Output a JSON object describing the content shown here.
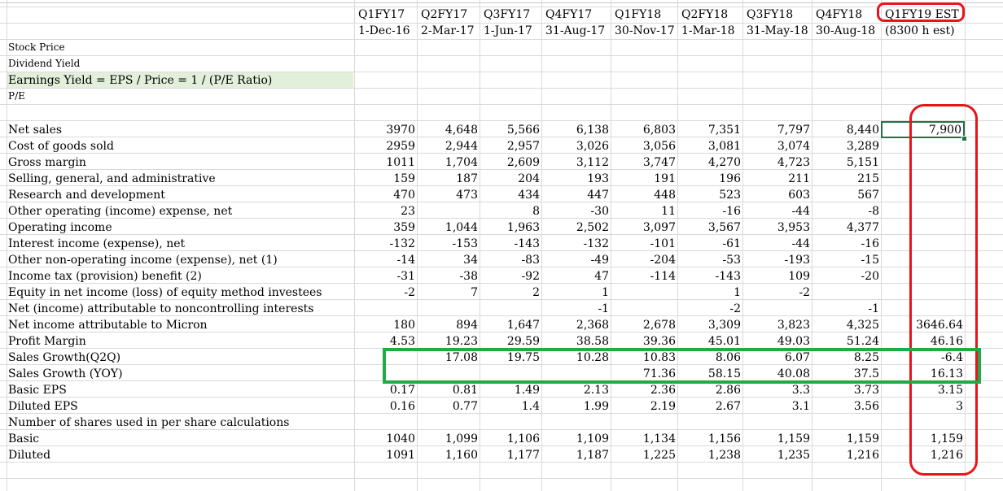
{
  "header": {
    "quarters": [
      "Q1FY17",
      "Q2FY17",
      "Q3FY17",
      "Q4FY17",
      "Q1FY18",
      "Q2FY18",
      "Q3FY18",
      "Q4FY18",
      "Q1FY19 EST"
    ],
    "dates": [
      "1-Dec-16",
      "2-Mar-17",
      "1-Jun-17",
      "31-Aug-17",
      "30-Nov-17",
      "1-Mar-18",
      "31-May-18",
      "30-Aug-18",
      "(8300 h est)"
    ]
  },
  "top_labels": [
    "Stock Price",
    "Dividend Yield",
    "Earnings Yield = EPS / Price = 1 / (P/E Ratio)",
    "P/E"
  ],
  "selected_value": "7,900",
  "rows": [
    {
      "label": "Net sales",
      "values": [
        "3970",
        "4,648",
        "5,566",
        "6,138",
        "6,803",
        "7,351",
        "7,797",
        "8,440",
        ""
      ]
    },
    {
      "label": "Cost of goods sold",
      "values": [
        "2959",
        "2,944",
        "2,957",
        "3,026",
        "3,056",
        "3,081",
        "3,074",
        "3,289",
        ""
      ]
    },
    {
      "label": "Gross margin",
      "values": [
        "1011",
        "1,704",
        "2,609",
        "3,112",
        "3,747",
        "4,270",
        "4,723",
        "5,151",
        ""
      ]
    },
    {
      "label": "Selling, general, and administrative",
      "values": [
        "159",
        "187",
        "204",
        "193",
        "191",
        "196",
        "211",
        "215",
        ""
      ]
    },
    {
      "label": "Research and development",
      "values": [
        "470",
        "473",
        "434",
        "447",
        "448",
        "523",
        "603",
        "567",
        ""
      ]
    },
    {
      "label": "Other operating (income) expense, net",
      "values": [
        "23",
        "",
        "8",
        "-30",
        "11",
        "-16",
        "-44",
        "-8",
        ""
      ]
    },
    {
      "label": "Operating income",
      "values": [
        "359",
        "1,044",
        "1,963",
        "2,502",
        "3,097",
        "3,567",
        "3,953",
        "4,377",
        ""
      ]
    },
    {
      "label": "Interest income (expense), net",
      "values": [
        "-132",
        "-153",
        "-143",
        "-132",
        "-101",
        "-61",
        "-44",
        "-16",
        ""
      ]
    },
    {
      "label": "Other non-operating income (expense), net (1)",
      "values": [
        "-14",
        "34",
        "-83",
        "-49",
        "-204",
        "-53",
        "-193",
        "-15",
        ""
      ]
    },
    {
      "label": "Income tax (provision) benefit (2)",
      "values": [
        "-31",
        "-38",
        "-92",
        "47",
        "-114",
        "-143",
        "109",
        "-20",
        ""
      ]
    },
    {
      "label": "Equity in net income (loss) of equity method investees",
      "values": [
        "-2",
        "7",
        "2",
        "1",
        "",
        "1",
        "-2",
        "",
        ""
      ]
    },
    {
      "label": "Net (income) attributable to noncontrolling interests",
      "values": [
        "",
        "",
        "",
        "-1",
        "",
        "-2",
        "",
        "-1",
        ""
      ]
    },
    {
      "label": "Net income attributable to Micron",
      "values": [
        "180",
        "894",
        "1,647",
        "2,368",
        "2,678",
        "3,309",
        "3,823",
        "4,325",
        "3646.64"
      ]
    },
    {
      "label": "Profit Margin",
      "values": [
        "4.53",
        "19.23",
        "29.59",
        "38.58",
        "39.36",
        "45.01",
        "49.03",
        "51.24",
        "46.16"
      ]
    },
    {
      "label": "Sales Growth(Q2Q)",
      "values": [
        "",
        "17.08",
        "19.75",
        "10.28",
        "10.83",
        "8.06",
        "6.07",
        "8.25",
        "-6.4"
      ]
    },
    {
      "label": "Sales Growth (YOY)",
      "values": [
        "",
        "",
        "",
        "",
        "71.36",
        "58.15",
        "40.08",
        "37.5",
        "16.13"
      ]
    },
    {
      "label": "Basic EPS",
      "values": [
        "0.17",
        "0.81",
        "1.49",
        "2.13",
        "2.36",
        "2.86",
        "3.3",
        "3.73",
        "3.15"
      ]
    },
    {
      "label": "Diluted EPS",
      "values": [
        "0.16",
        "0.77",
        "1.4",
        "1.99",
        "2.19",
        "2.67",
        "3.1",
        "3.56",
        "3"
      ]
    },
    {
      "label": "Number of shares used in per share calculations",
      "values": [
        "",
        "",
        "",
        "",
        "",
        "",
        "",
        "",
        ""
      ]
    },
    {
      "label": "Basic",
      "values": [
        "1040",
        "1,099",
        "1,106",
        "1,109",
        "1,134",
        "1,156",
        "1,159",
        "1,159",
        "1,159"
      ]
    },
    {
      "label": "Diluted",
      "values": [
        "1091",
        "1,160",
        "1,177",
        "1,187",
        "1,225",
        "1,238",
        "1,235",
        "1,216",
        "1,216"
      ]
    }
  ],
  "colors": {
    "annotation_red": "#e8141a",
    "annotation_green": "#22aa44",
    "selection": "#217346",
    "highlight": "#e2efda"
  }
}
